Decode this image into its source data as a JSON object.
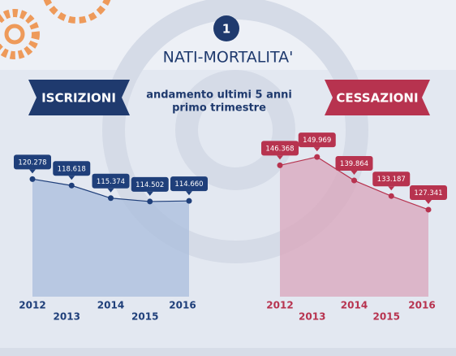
{
  "header": {
    "badge": "1",
    "title": "NATI-MORTALITA'",
    "subtitle": [
      "andamento ultimi 5 anni",
      "primo trimestre"
    ]
  },
  "chart_data": [
    {
      "type": "area",
      "title": "ISCRIZIONI",
      "categories": [
        "2012",
        "2013",
        "2014",
        "2015",
        "2016"
      ],
      "values": [
        120278,
        118618,
        115374,
        114502,
        114660
      ],
      "value_labels": [
        "120.278",
        "118.618",
        "115.374",
        "114.502",
        "114.660"
      ],
      "color": "#1f3f7a",
      "area_color": "#a9bddc",
      "ylim": [
        90000,
        135000
      ]
    },
    {
      "type": "area",
      "title": "CESSAZIONI",
      "categories": [
        "2012",
        "2013",
        "2014",
        "2015",
        "2016"
      ],
      "values": [
        146368,
        149969,
        139864,
        133187,
        127341
      ],
      "value_labels": [
        "146.368",
        "149.969",
        "139.864",
        "133.187",
        "127.341"
      ],
      "color": "#b7334f",
      "area_color": "#d9a6bb",
      "ylim": [
        90000,
        165000
      ]
    }
  ]
}
